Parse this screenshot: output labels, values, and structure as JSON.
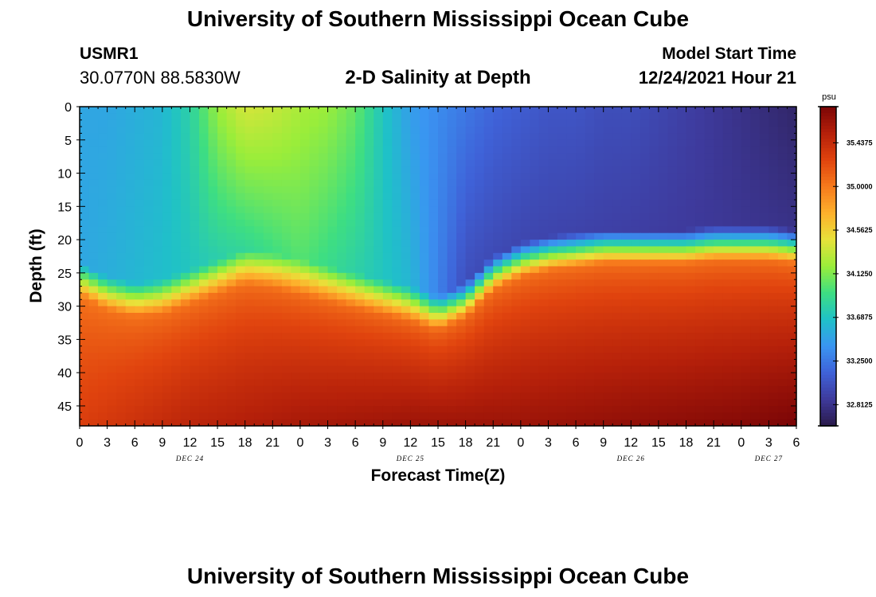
{
  "header": {
    "title": "University of Southern Mississippi Ocean Cube",
    "station_id": "USMR1",
    "station_coords": "30.0770N  88.5830W",
    "subtitle": "2-D Salinity at Depth",
    "model_start_label": "Model Start Time",
    "model_start_value": "12/24/2021 Hour 21"
  },
  "footer": {
    "title": "University of Southern Mississippi Ocean Cube"
  },
  "chart_data": {
    "type": "heatmap",
    "xlabel": "Forecast Time(Z)",
    "ylabel": "Depth (ft)",
    "x_range_hours": [
      0,
      78
    ],
    "x_tick_labels": [
      "0",
      "3",
      "6",
      "9",
      "12",
      "15",
      "18",
      "21",
      "0",
      "3",
      "6",
      "9",
      "12",
      "15",
      "18",
      "21",
      "0",
      "3",
      "6",
      "9",
      "12",
      "15",
      "18",
      "21",
      "0",
      "3",
      "6"
    ],
    "day_labels": [
      {
        "label": "DEC 24",
        "hour": 12
      },
      {
        "label": "DEC 25",
        "hour": 36
      },
      {
        "label": "DEC 26",
        "hour": 60
      },
      {
        "label": "DEC 27",
        "hour": 75
      }
    ],
    "y_range_ft": [
      0,
      48
    ],
    "y_ticks": [
      0,
      5,
      10,
      15,
      20,
      25,
      30,
      35,
      40,
      45
    ],
    "y_reversed": true,
    "colorbar": {
      "unit": "psu",
      "range": [
        32.6,
        35.8
      ],
      "ticks": [
        32.8125,
        33.25,
        33.6875,
        34.125,
        34.5625,
        35.0,
        35.4375
      ],
      "tick_labels": [
        "32.8125",
        "33.2500",
        "33.6875",
        "34.1250",
        "34.5625",
        "35.0000",
        "35.4375"
      ],
      "colormap": [
        "#2a1a4a",
        "#3e3a9c",
        "#3f62d8",
        "#3a95f2",
        "#1fc1c8",
        "#3ede82",
        "#9aed3a",
        "#e8e23a",
        "#fdb02c",
        "#f77a1c",
        "#e0430e",
        "#b5200a",
        "#7a0506"
      ]
    },
    "halocline_interface_ft": [
      [
        0,
        26
      ],
      [
        3,
        28
      ],
      [
        6,
        29
      ],
      [
        9,
        28.5
      ],
      [
        12,
        27
      ],
      [
        15,
        25.5
      ],
      [
        18,
        24
      ],
      [
        21,
        24.5
      ],
      [
        24,
        25.5
      ],
      [
        27,
        26.5
      ],
      [
        30,
        27.5
      ],
      [
        33,
        28.5
      ],
      [
        36,
        29.5
      ],
      [
        39,
        31
      ],
      [
        42,
        29
      ],
      [
        45,
        25
      ],
      [
        48,
        23
      ],
      [
        51,
        22
      ],
      [
        54,
        21.5
      ],
      [
        57,
        21
      ],
      [
        60,
        21
      ],
      [
        63,
        21
      ],
      [
        66,
        21
      ],
      [
        69,
        20.5
      ],
      [
        72,
        20.5
      ],
      [
        75,
        20.5
      ],
      [
        78,
        21
      ]
    ],
    "surface_salinity_psu": [
      [
        0,
        33.5
      ],
      [
        3,
        33.5
      ],
      [
        6,
        33.55
      ],
      [
        9,
        33.6
      ],
      [
        12,
        33.8
      ],
      [
        15,
        34.2
      ],
      [
        18,
        34.4
      ],
      [
        21,
        34.35
      ],
      [
        24,
        34.25
      ],
      [
        27,
        34.2
      ],
      [
        30,
        34.05
      ],
      [
        33,
        33.7
      ],
      [
        36,
        33.45
      ],
      [
        39,
        33.35
      ],
      [
        42,
        33.25
      ],
      [
        45,
        33.15
      ],
      [
        48,
        33.1
      ],
      [
        51,
        33.05
      ],
      [
        54,
        33.05
      ],
      [
        57,
        33.0
      ],
      [
        60,
        33.0
      ],
      [
        63,
        32.95
      ],
      [
        66,
        32.9
      ],
      [
        69,
        32.85
      ],
      [
        72,
        32.8
      ],
      [
        75,
        32.75
      ],
      [
        78,
        32.7
      ]
    ],
    "upper_layer_salinity_at_interface_psu": [
      [
        0,
        33.5
      ],
      [
        12,
        33.7
      ],
      [
        24,
        34.0
      ],
      [
        36,
        33.6
      ],
      [
        42,
        33.0
      ],
      [
        48,
        32.95
      ],
      [
        60,
        32.9
      ],
      [
        78,
        32.8
      ]
    ],
    "bottom_salinity_psu": [
      [
        0,
        35.3
      ],
      [
        12,
        35.5
      ],
      [
        24,
        35.6
      ],
      [
        36,
        35.65
      ],
      [
        48,
        35.65
      ],
      [
        60,
        35.7
      ],
      [
        72,
        35.75
      ],
      [
        78,
        35.8
      ]
    ]
  }
}
